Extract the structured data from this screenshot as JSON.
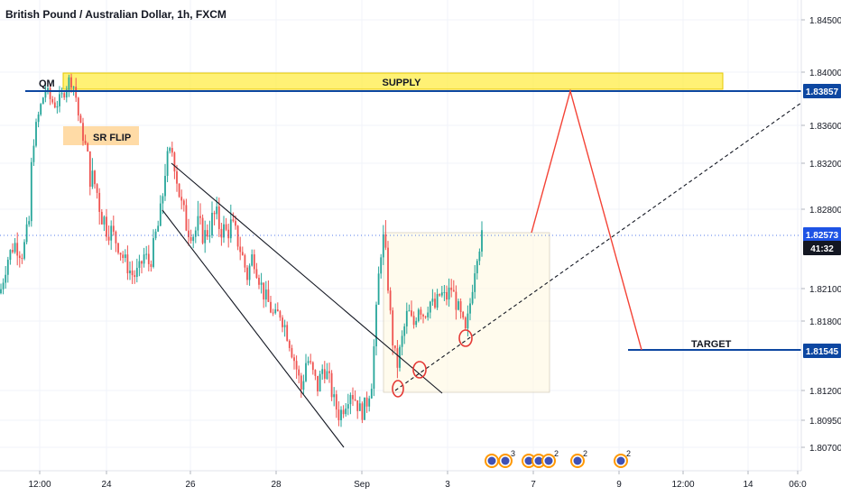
{
  "header": {
    "title": "British Pound / Australian Dollar, 1h, FXCM"
  },
  "chart_data": {
    "type": "candlestick",
    "title": "British Pound / Australian Dollar, 1h, FXCM",
    "ylim": [
      1.8045,
      1.8465
    ],
    "y_ticks": [
      "1.84500",
      "1.84000",
      "1.83600",
      "1.83200",
      "1.82800",
      "1.82100",
      "1.81800",
      "1.81200",
      "1.80950",
      "1.80700"
    ],
    "y_tick_values": [
      1.845,
      1.84,
      1.836,
      1.832,
      1.828,
      1.821,
      1.818,
      1.812,
      1.8095,
      1.807
    ],
    "x_ticks": [
      "12:00",
      "24",
      "26",
      "28",
      "Sep",
      "3",
      "7",
      "9",
      "12:00",
      "14",
      "06:0"
    ],
    "price_labels": [
      {
        "id": "supply-level",
        "text": "1.83857",
        "value": 1.83857,
        "bg": "#0d47a1"
      },
      {
        "id": "current-price",
        "text": "1.82573",
        "value": 1.82573,
        "bg": "#1e53e5"
      },
      {
        "id": "countdown",
        "text": "41:32",
        "value": 1.8241,
        "bg": "#131722"
      },
      {
        "id": "target-level",
        "text": "1.81545",
        "value": 1.81545,
        "bg": "#0d47a1"
      }
    ],
    "current_price": 1.82573,
    "annotations": {
      "qm": "QM",
      "supply": "SUPPLY",
      "sr_flip": "SR FLIP",
      "target": "TARGET"
    },
    "event_badges": [
      "3",
      "2",
      "2",
      "2"
    ],
    "colors": {
      "up": "#26a69a",
      "down": "#ef5350",
      "level_line": "#0d47a1",
      "supply_zone": "#ffeb3b",
      "sr_flip_zone": "#ffcc80",
      "projection": "#f44336",
      "range_box": "#fff8e1"
    },
    "price_path": [
      [
        0,
        1.8205
      ],
      [
        8,
        1.8235
      ],
      [
        16,
        1.825
      ],
      [
        24,
        1.824
      ],
      [
        32,
        1.8262
      ],
      [
        38,
        1.833
      ],
      [
        44,
        1.8362
      ],
      [
        50,
        1.8388
      ],
      [
        56,
        1.8375
      ],
      [
        62,
        1.8368
      ],
      [
        68,
        1.8378
      ],
      [
        74,
        1.8392
      ],
      [
        80,
        1.8398
      ],
      [
        84,
        1.838
      ],
      [
        88,
        1.8345
      ],
      [
        94,
        1.832
      ],
      [
        100,
        1.829
      ],
      [
        106,
        1.8285
      ],
      [
        112,
        1.827
      ],
      [
        118,
        1.8262
      ],
      [
        124,
        1.8258
      ],
      [
        130,
        1.825
      ],
      [
        136,
        1.8238
      ],
      [
        142,
        1.8228
      ],
      [
        148,
        1.822
      ],
      [
        154,
        1.8225
      ],
      [
        160,
        1.824
      ],
      [
        166,
        1.823
      ],
      [
        172,
        1.8255
      ],
      [
        178,
        1.8268
      ],
      [
        184,
        1.83
      ],
      [
        190,
        1.8312
      ],
      [
        196,
        1.829
      ],
      [
        202,
        1.827
      ],
      [
        208,
        1.8262
      ],
      [
        214,
        1.8258
      ],
      [
        220,
        1.8262
      ],
      [
        226,
        1.8255
      ],
      [
        232,
        1.8262
      ],
      [
        238,
        1.8268
      ],
      [
        244,
        1.8262
      ],
      [
        250,
        1.8258
      ],
      [
        256,
        1.8262
      ],
      [
        262,
        1.8255
      ],
      [
        268,
        1.824
      ],
      [
        274,
        1.822
      ],
      [
        280,
        1.824
      ],
      [
        286,
        1.8222
      ],
      [
        292,
        1.8205
      ],
      [
        298,
        1.8195
      ],
      [
        304,
        1.8182
      ],
      [
        310,
        1.8188
      ],
      [
        316,
        1.8175
      ],
      [
        322,
        1.8158
      ],
      [
        328,
        1.814
      ],
      [
        334,
        1.812
      ],
      [
        340,
        1.8148
      ],
      [
        346,
        1.8135
      ],
      [
        352,
        1.8122
      ],
      [
        358,
        1.814
      ],
      [
        364,
        1.813
      ],
      [
        370,
        1.811
      ],
      [
        376,
        1.8098
      ],
      [
        382,
        1.8108
      ],
      [
        388,
        1.812
      ],
      [
        394,
        1.8112
      ],
      [
        400,
        1.81
      ],
      [
        406,
        1.8108
      ],
      [
        412,
        1.8128
      ],
      [
        416,
        1.8175
      ],
      [
        420,
        1.8225
      ],
      [
        424,
        1.8258
      ],
      [
        428,
        1.8235
      ],
      [
        432,
        1.819
      ],
      [
        436,
        1.8155
      ],
      [
        440,
        1.814
      ],
      [
        446,
        1.8165
      ],
      [
        452,
        1.819
      ],
      [
        458,
        1.8175
      ],
      [
        464,
        1.8195
      ],
      [
        470,
        1.8185
      ],
      [
        476,
        1.8198
      ],
      [
        482,
        1.8192
      ],
      [
        488,
        1.8205
      ],
      [
        494,
        1.82
      ],
      [
        500,
        1.821
      ],
      [
        506,
        1.8195
      ],
      [
        512,
        1.818
      ],
      [
        516,
        1.8168
      ],
      [
        520,
        1.819
      ],
      [
        524,
        1.8215
      ],
      [
        528,
        1.824
      ],
      [
        532,
        1.825
      ],
      [
        536,
        1.8257
      ]
    ]
  }
}
